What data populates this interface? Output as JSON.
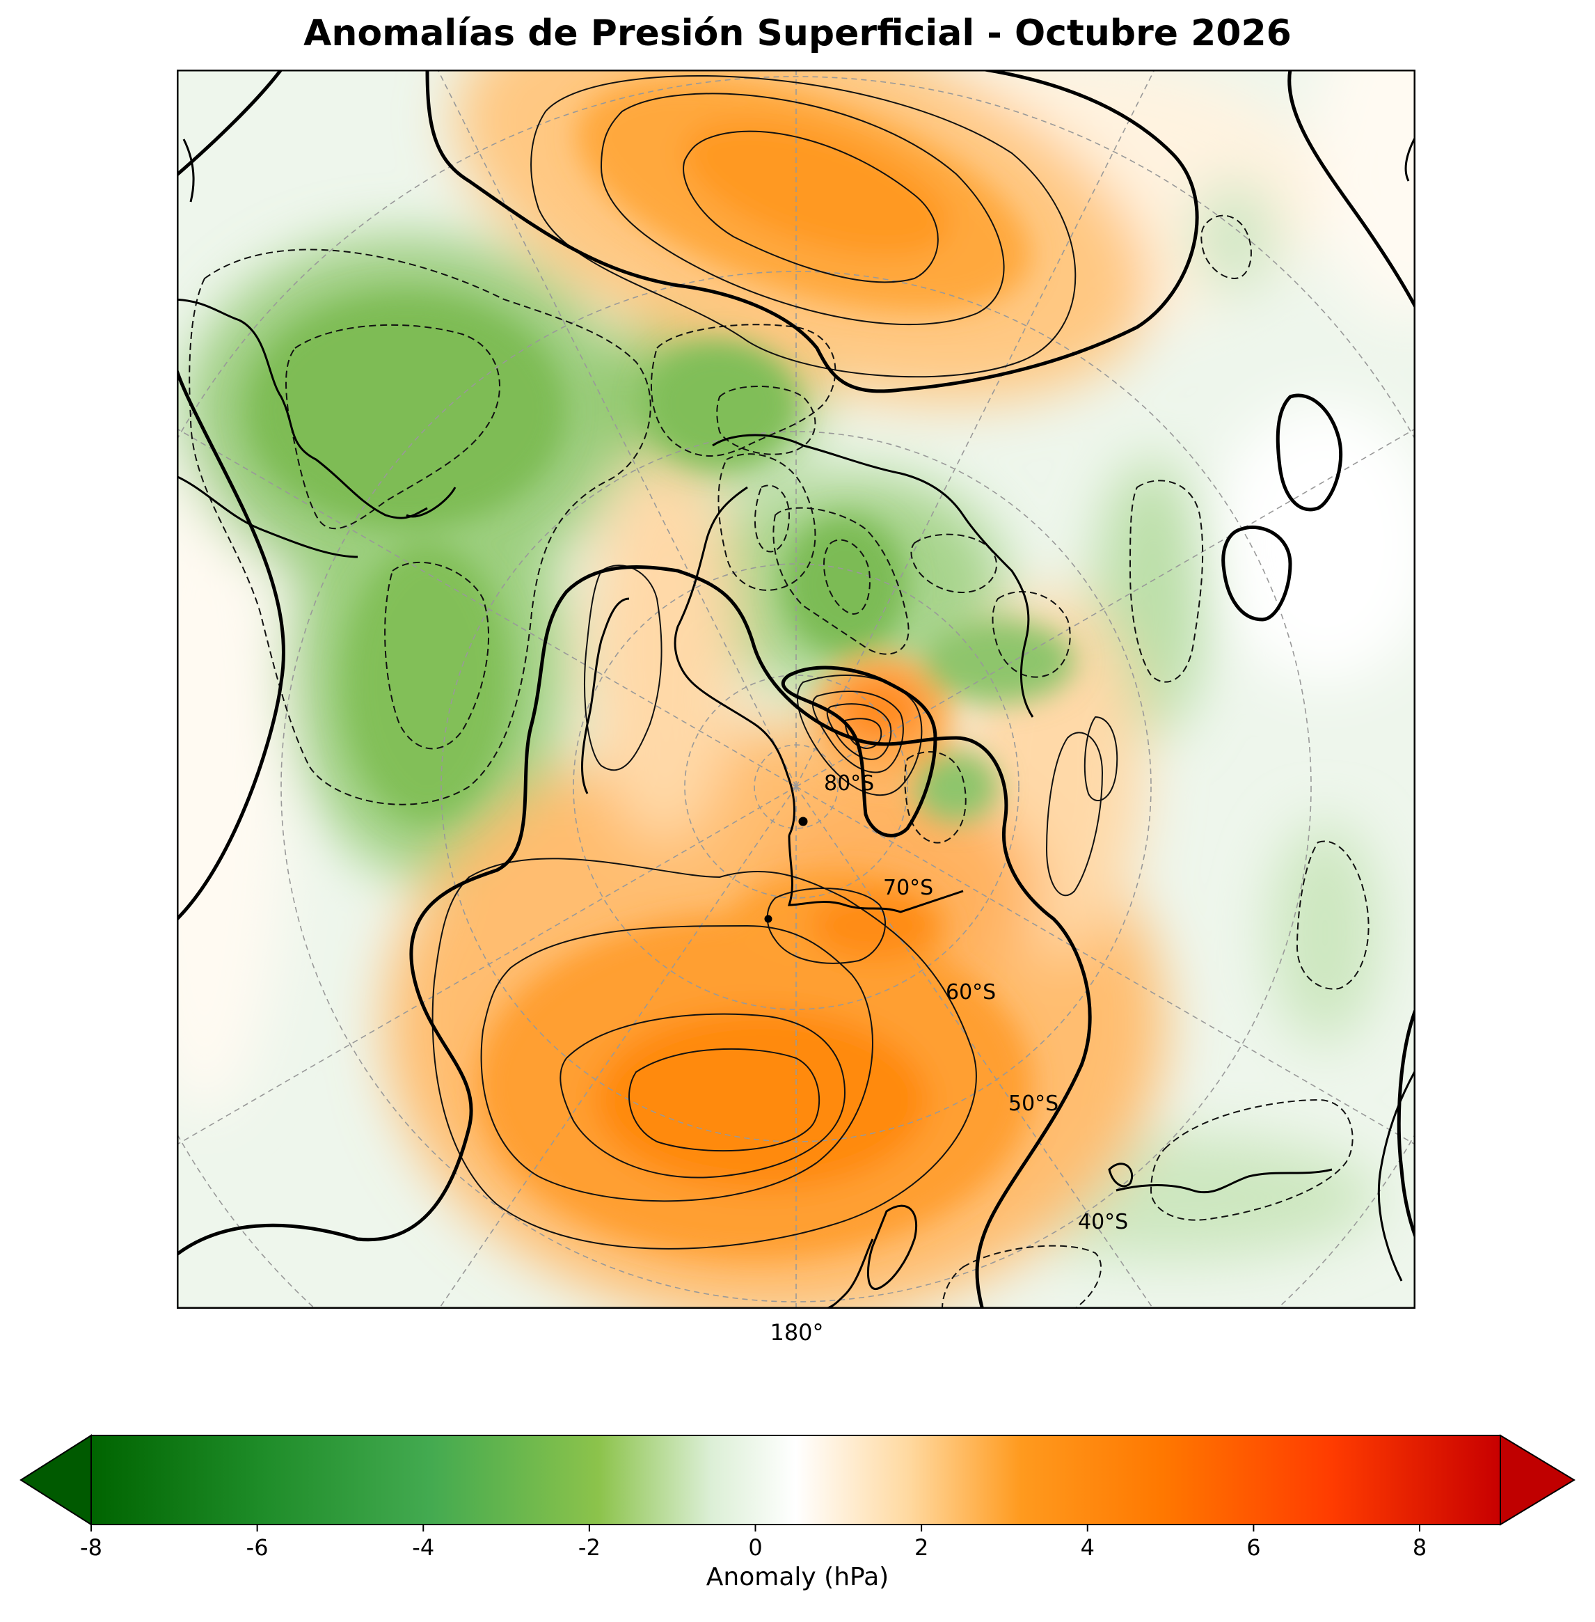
{
  "title": "Anomalías de Presión Superficial - Octubre 2026",
  "map": {
    "projection": "south-polar-stereographic",
    "central_longitude_label": "180°",
    "latitude_labels": [
      "80°S",
      "70°S",
      "60°S",
      "50°S",
      "40°S"
    ],
    "contour_interval_hPa": 1,
    "zero_contour": "thick-solid",
    "negative_contours": "dashed",
    "positive_contours": "solid",
    "features": [
      {
        "name": "positive anomaly centre north of map",
        "sign": "positive",
        "peak_hPa": 3
      },
      {
        "name": "positive anomaly centre south of map",
        "sign": "positive",
        "peak_hPa": 4
      },
      {
        "name": "positive anomaly over Ross Ice Shelf region",
        "sign": "positive",
        "peak_hPa": 5
      },
      {
        "name": "negative anomaly west (left)",
        "sign": "negative",
        "peak_hPa": -2
      },
      {
        "name": "negative anomaly over East Antarctica",
        "sign": "negative",
        "peak_hPa": -2
      },
      {
        "name": "weak negative anomalies east (right)",
        "sign": "negative",
        "peak_hPa": -1
      }
    ]
  },
  "colorbar": {
    "label": "Anomaly (hPa)",
    "min": -8,
    "max": 8,
    "extend": "both",
    "ticks": [
      "-8",
      "-6",
      "-4",
      "-2",
      "0",
      "2",
      "4",
      "6",
      "8"
    ],
    "colors": [
      "#006400",
      "#1e8c28",
      "#43aa50",
      "#8cc34b",
      "#ffffff",
      "#ffc870",
      "#ff9a1e",
      "#ff7800",
      "#ff3c00",
      "#c80000"
    ]
  }
}
